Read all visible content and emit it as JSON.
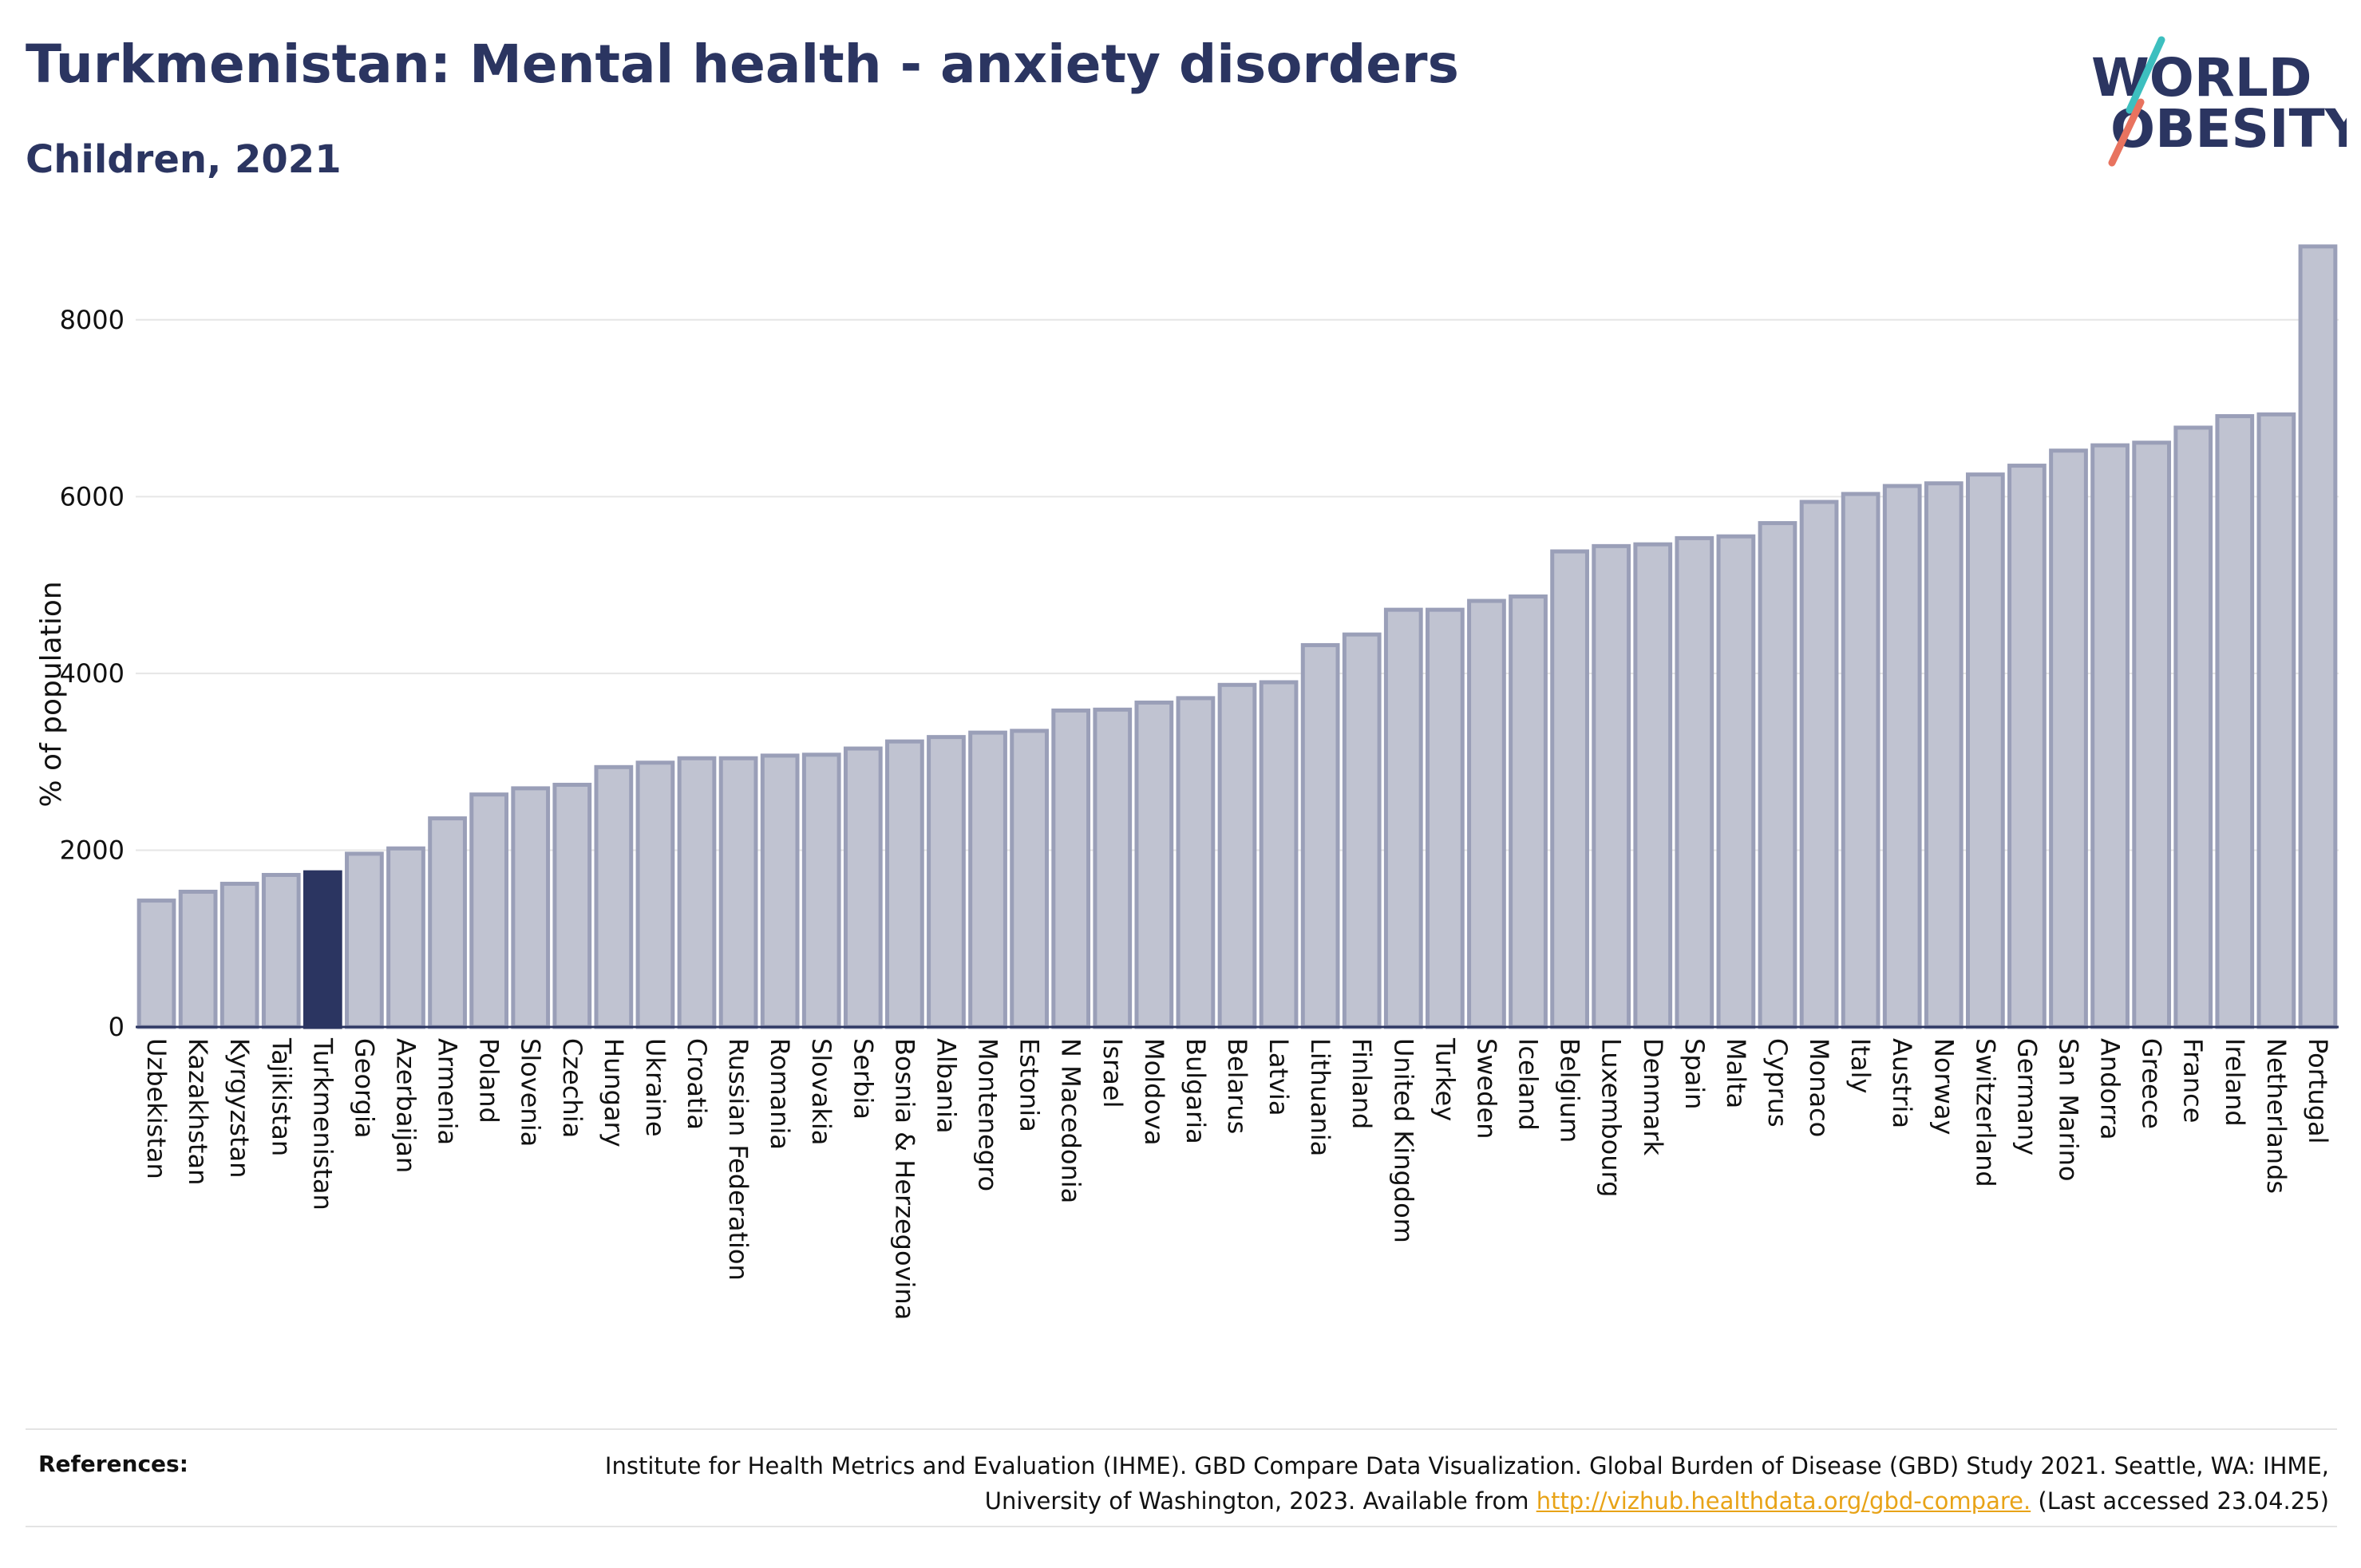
{
  "header": {
    "title": "Turkmenistan: Mental health - anxiety disorders",
    "subtitle": "Children, 2021"
  },
  "logo": {
    "line1": "WORLD",
    "line2": "OBESITY",
    "colors": {
      "text": "#2b3561",
      "slash_teal": "#3dbfbf",
      "slash_coral": "#e8735f"
    }
  },
  "chart_data": {
    "type": "bar",
    "title": "",
    "xlabel": "",
    "ylabel": "% of population",
    "ylim": [
      0,
      9000
    ],
    "yticks": [
      0,
      2000,
      4000,
      6000,
      8000
    ],
    "grid": true,
    "highlight": "Turkmenistan",
    "colors": {
      "bar": "#c0c3d1",
      "bar_stroke": "#9a9fb8",
      "highlight": "#2b3561"
    },
    "categories": [
      "Uzbekistan",
      "Kazakhstan",
      "Kyrgyzstan",
      "Tajikistan",
      "Turkmenistan",
      "Georgia",
      "Azerbaijan",
      "Armenia",
      "Poland",
      "Slovenia",
      "Czechia",
      "Hungary",
      "Ukraine",
      "Croatia",
      "Russian Federation",
      "Romania",
      "Slovakia",
      "Serbia",
      "Bosnia & Herzegovina",
      "Albania",
      "Montenegro",
      "Estonia",
      "N Macedonia",
      "Israel",
      "Moldova",
      "Bulgaria",
      "Belarus",
      "Latvia",
      "Lithuania",
      "Finland",
      "United Kingdom",
      "Turkey",
      "Sweden",
      "Iceland",
      "Belgium",
      "Luxembourg",
      "Denmark",
      "Spain",
      "Malta",
      "Cyprus",
      "Monaco",
      "Italy",
      "Austria",
      "Norway",
      "Switzerland",
      "Germany",
      "San Marino",
      "Andorra",
      "Greece",
      "France",
      "Ireland",
      "Netherlands",
      "Portugal"
    ],
    "values": [
      1430,
      1530,
      1620,
      1720,
      1750,
      1960,
      2020,
      2360,
      2630,
      2700,
      2740,
      2940,
      2990,
      3040,
      3040,
      3070,
      3080,
      3150,
      3230,
      3280,
      3330,
      3350,
      3580,
      3590,
      3670,
      3720,
      3870,
      3900,
      4320,
      4440,
      4720,
      4720,
      4820,
      4870,
      5380,
      5440,
      5460,
      5530,
      5550,
      5700,
      5940,
      6030,
      6120,
      6150,
      6250,
      6350,
      6520,
      6580,
      6610,
      6780,
      6910,
      6930,
      8830
    ]
  },
  "references": {
    "label": "References:",
    "text_before_link": "Institute for Health Metrics and Evaluation (IHME). GBD Compare Data Visualization. Global Burden of Disease (GBD) Study 2021. Seattle, WA: IHME, University of Washington, 2023. Available from ",
    "link_text": "http://vizhub.healthdata.org/gbd-compare.",
    "text_after_link": " (Last accessed 23.04.25)"
  }
}
